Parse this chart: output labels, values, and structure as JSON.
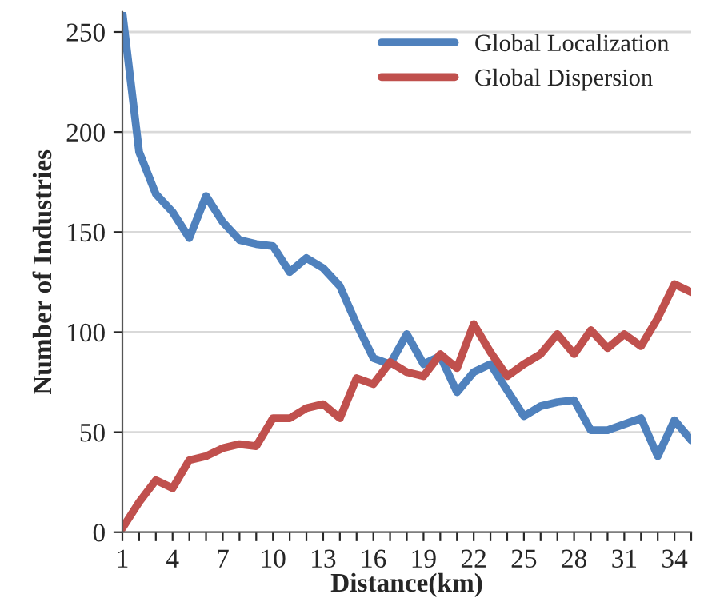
{
  "chart_data": {
    "type": "line",
    "xlabel": "Distance(km)",
    "ylabel": "Number of Industries",
    "categories": [
      "1",
      null,
      null,
      "4",
      null,
      null,
      "7",
      null,
      null,
      "10",
      null,
      null,
      "13",
      null,
      null,
      "16",
      null,
      null,
      "19",
      null,
      null,
      "22",
      null,
      null,
      "25",
      null,
      null,
      "28",
      null,
      null,
      "31",
      null,
      null,
      "34",
      null
    ],
    "series": [
      {
        "name": "Global Localization",
        "color": "#4f81bd",
        "values": [
          260,
          190,
          169,
          160,
          147,
          168,
          155,
          146,
          144,
          143,
          130,
          137,
          132,
          123,
          104,
          87,
          84,
          99,
          84,
          88,
          70,
          80,
          84,
          71,
          58,
          63,
          65,
          66,
          51,
          51,
          54,
          57,
          38,
          56,
          46
        ]
      },
      {
        "name": "Global Dispersion",
        "color": "#c0504d",
        "values": [
          2,
          15,
          26,
          22,
          36,
          38,
          42,
          44,
          43,
          57,
          57,
          62,
          64,
          57,
          77,
          74,
          85,
          80,
          78,
          89,
          82,
          104,
          90,
          78,
          84,
          89,
          99,
          89,
          101,
          92,
          99,
          93,
          107,
          124,
          120
        ]
      }
    ],
    "ylim": [
      0,
      260
    ],
    "yticks": [
      0,
      50,
      100,
      150,
      200,
      250
    ],
    "grid": "y",
    "legend": "top right",
    "marker": "none",
    "line_style": "solid"
  }
}
